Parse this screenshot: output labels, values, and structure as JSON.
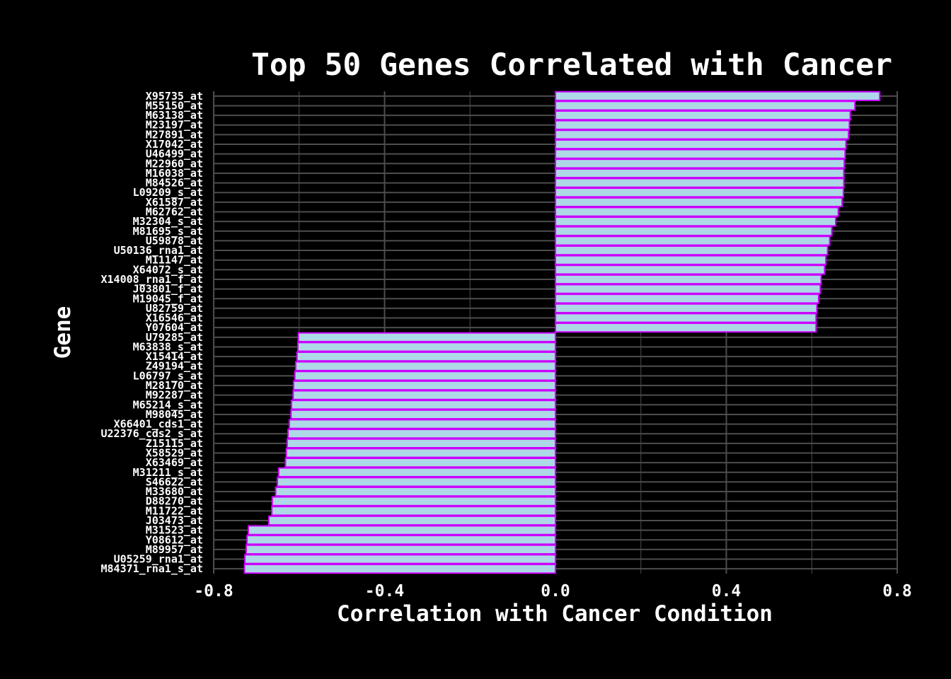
{
  "chart_data": {
    "type": "bar",
    "orientation": "horizontal",
    "title": "Top 50 Genes Correlated with Cancer",
    "xlabel": "Correlation with Cancer Condition",
    "ylabel": "Gene",
    "xlim": [
      -0.8,
      0.8
    ],
    "xticks": [
      -0.8,
      -0.4,
      0.0,
      0.4,
      0.8
    ],
    "xtick_labels": [
      "-0.8",
      "-0.4",
      "0.0",
      "0.4",
      "0.8"
    ],
    "grid": true,
    "colors": {
      "background": "#000000",
      "bar_fill": "#add8e6",
      "bar_stroke": "#cc00ff",
      "grid": "#4d4d4d",
      "text": "#ffffff"
    },
    "categories": [
      "X95735_at",
      "M55150_at",
      "M63138_at",
      "M23197_at",
      "M27891_at",
      "X17042_at",
      "U46499_at",
      "M22960_at",
      "M16038_at",
      "M84526_at",
      "L09209_s_at",
      "X61587_at",
      "M62762_at",
      "M32304_s_at",
      "M81695_s_at",
      "U59878_at",
      "U50136_rna1_at",
      "M11147_at",
      "X64072_s_at",
      "X14008_rna1_f_at",
      "J03801_f_at",
      "M19045_f_at",
      "U82759_at",
      "X16546_at",
      "Y07604_at",
      "U79285_at",
      "M63838_s_at",
      "X15414_at",
      "Z49194_at",
      "L06797_s_at",
      "M28170_at",
      "M92287_at",
      "M65214_s_at",
      "M98045_at",
      "X66401_cds1_at",
      "U22376_cds2_s_at",
      "Z15115_at",
      "X58529_at",
      "X63469_at",
      "M31211_s_at",
      "S46622_at",
      "M33680_at",
      "D88270_at",
      "M11722_at",
      "J03473_at",
      "M31523_at",
      "Y08612_at",
      "M89957_at",
      "U05259_rna1_at",
      "M84371_rna1_s_at"
    ],
    "values": [
      0.759,
      0.701,
      0.69,
      0.688,
      0.686,
      0.68,
      0.678,
      0.676,
      0.675,
      0.675,
      0.674,
      0.671,
      0.662,
      0.656,
      0.647,
      0.642,
      0.637,
      0.633,
      0.63,
      0.622,
      0.62,
      0.616,
      0.612,
      0.61,
      0.61,
      -0.602,
      -0.603,
      -0.605,
      -0.608,
      -0.61,
      -0.613,
      -0.614,
      -0.618,
      -0.619,
      -0.623,
      -0.626,
      -0.628,
      -0.63,
      -0.632,
      -0.648,
      -0.651,
      -0.655,
      -0.663,
      -0.664,
      -0.671,
      -0.719,
      -0.722,
      -0.724,
      -0.727,
      -0.728
    ]
  }
}
